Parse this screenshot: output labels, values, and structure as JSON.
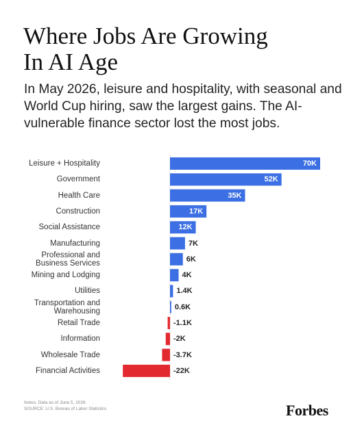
{
  "chart_data": {
    "type": "bar",
    "orientation": "horizontal",
    "title": "Where Jobs Are Growing In AI Age",
    "subtitle": "In May 2026, leisure and hospitality, with seasonal and World Cup hiring, saw the largest gains. The AI-vulnerable finance sector lost the most jobs.",
    "categories": [
      "Leisure + Hospitality",
      "Government",
      "Health Care",
      "Construction",
      "Social Assistance",
      "Manufacturing",
      "Professional and\nBusiness Services",
      "Mining and Lodging",
      "Utilities",
      "Transportation and\nWarehousing",
      "Retail Trade",
      "Information",
      "Wholesale Trade",
      "Financial Activities"
    ],
    "values": [
      70,
      52,
      35,
      17,
      12,
      7,
      6,
      4,
      1.4,
      0.6,
      -1.1,
      -2,
      -3.7,
      -22
    ],
    "value_labels": [
      "70K",
      "52K",
      "35K",
      "17K",
      "12K",
      "7K",
      "6K",
      "4K",
      "1.4K",
      "0.6K",
      "-1.1K",
      "-2K",
      "-3.7K",
      "-22K"
    ],
    "positive_color": "#3b6fe3",
    "negative_color": "#e2292f",
    "notes": "Notes: Data as of June 5, 2026",
    "source": "SOURCE: U.S. Bureau of Labor Statistics",
    "brand": "Forbes"
  }
}
